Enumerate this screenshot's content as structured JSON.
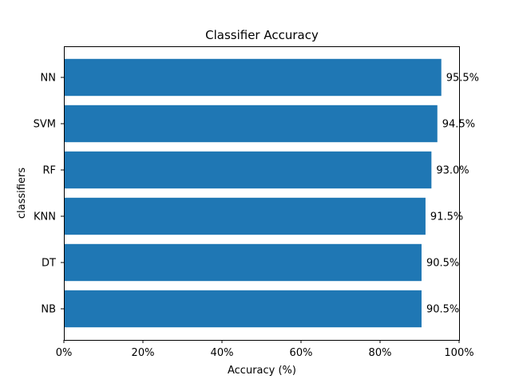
{
  "chart_data": {
    "type": "bar",
    "orientation": "horizontal",
    "title": "Classifier Accuracy",
    "xlabel": "Accuracy (%)",
    "ylabel": "classifiers",
    "categories": [
      "NB",
      "DT",
      "KNN",
      "RF",
      "SVM",
      "NN"
    ],
    "values": [
      90.5,
      90.5,
      91.5,
      93.0,
      94.5,
      95.5
    ],
    "value_labels": [
      "90.5%",
      "90.5%",
      "91.5%",
      "93.0%",
      "94.5%",
      "95.5%"
    ],
    "xlim": [
      0,
      100
    ],
    "xticks": [
      0,
      20,
      40,
      60,
      80,
      100
    ],
    "xtick_labels": [
      "0%",
      "20%",
      "40%",
      "60%",
      "80%",
      "100%"
    ],
    "bar_color": "#1f77b4",
    "grid": false,
    "legend": null
  }
}
